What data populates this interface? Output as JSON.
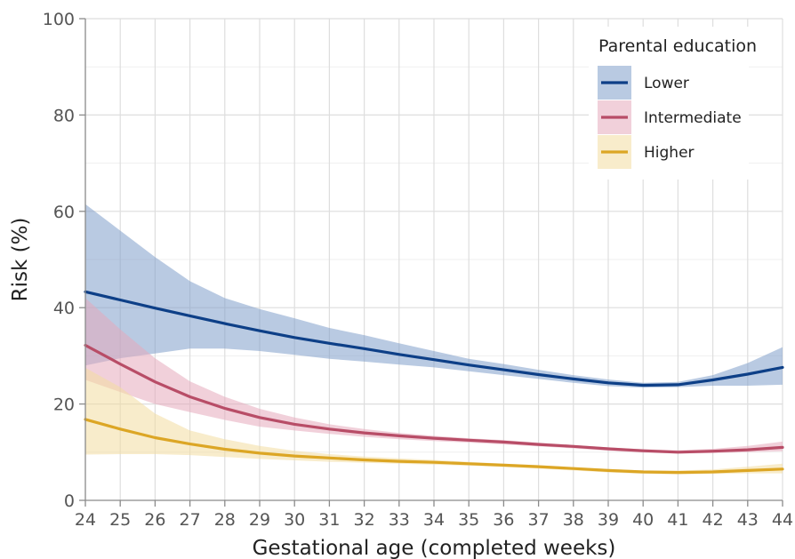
{
  "chart_data": {
    "type": "line",
    "xlabel": "Gestational age (completed weeks)",
    "ylabel": "Risk (%)",
    "xlim": [
      24,
      44
    ],
    "ylim": [
      0,
      100
    ],
    "x_ticks": [
      24,
      25,
      26,
      27,
      28,
      29,
      30,
      31,
      32,
      33,
      34,
      35,
      36,
      37,
      38,
      39,
      40,
      41,
      42,
      43,
      44
    ],
    "y_ticks": [
      0,
      20,
      40,
      60,
      80,
      100
    ],
    "grid": true,
    "legend": {
      "title": "Parental education",
      "position": "top-right"
    },
    "x": [
      24,
      25,
      26,
      27,
      28,
      29,
      30,
      31,
      32,
      33,
      34,
      35,
      36,
      37,
      38,
      39,
      40,
      41,
      42,
      43,
      44
    ],
    "series": [
      {
        "name": "Lower",
        "color": "#0d3f87",
        "band_color": "#7f9fca",
        "values": [
          43.3,
          41.6,
          39.9,
          38.3,
          36.7,
          35.2,
          33.8,
          32.6,
          31.5,
          30.3,
          29.2,
          28.1,
          27.1,
          26.1,
          25.2,
          24.4,
          23.9,
          24.0,
          25.0,
          26.2,
          27.6
        ],
        "lower": [
          28.0,
          29.5,
          30.5,
          31.5,
          31.5,
          31.0,
          30.2,
          29.4,
          28.8,
          28.2,
          27.6,
          26.8,
          26.0,
          25.2,
          24.4,
          23.7,
          23.4,
          23.5,
          23.8,
          23.8,
          24.0
        ],
        "upper": [
          61.5,
          56.0,
          50.5,
          45.5,
          42.0,
          39.7,
          37.8,
          35.8,
          34.3,
          32.6,
          31.0,
          29.4,
          28.3,
          27.1,
          26.0,
          25.1,
          24.4,
          24.6,
          26.0,
          28.5,
          31.8
        ]
      },
      {
        "name": "Intermediate",
        "color": "#b84d67",
        "band_color": "#e5aabb",
        "values": [
          32.2,
          28.3,
          24.6,
          21.5,
          19.1,
          17.2,
          15.8,
          14.8,
          14.0,
          13.4,
          12.9,
          12.5,
          12.1,
          11.6,
          11.2,
          10.7,
          10.3,
          10.0,
          10.2,
          10.5,
          11.0
        ],
        "lower": [
          25.0,
          22.5,
          20.0,
          18.3,
          16.7,
          15.3,
          14.5,
          13.8,
          13.2,
          12.7,
          12.3,
          12.0,
          11.6,
          11.2,
          10.8,
          10.3,
          9.9,
          9.7,
          9.8,
          10.0,
          10.2
        ],
        "upper": [
          42.0,
          35.5,
          29.5,
          24.7,
          21.5,
          19.0,
          17.2,
          15.8,
          14.8,
          14.0,
          13.4,
          12.9,
          12.5,
          12.0,
          11.5,
          11.0,
          10.6,
          10.4,
          10.7,
          11.3,
          12.2
        ]
      },
      {
        "name": "Higher",
        "color": "#dca625",
        "band_color": "#f3dca0",
        "values": [
          16.8,
          14.8,
          13.0,
          11.7,
          10.6,
          9.8,
          9.2,
          8.8,
          8.4,
          8.1,
          7.9,
          7.6,
          7.3,
          7.0,
          6.6,
          6.2,
          5.9,
          5.8,
          5.9,
          6.2,
          6.5
        ],
        "lower": [
          9.5,
          9.6,
          9.6,
          9.4,
          9.0,
          8.6,
          8.3,
          8.0,
          7.8,
          7.6,
          7.4,
          7.2,
          6.9,
          6.6,
          6.2,
          5.8,
          5.5,
          5.4,
          5.5,
          5.6,
          5.6
        ],
        "upper": [
          27.5,
          23.5,
          18.0,
          14.5,
          12.7,
          11.3,
          10.3,
          9.6,
          9.1,
          8.7,
          8.4,
          8.0,
          7.6,
          7.3,
          6.9,
          6.5,
          6.2,
          6.2,
          6.4,
          7.0,
          7.6
        ]
      }
    ]
  }
}
